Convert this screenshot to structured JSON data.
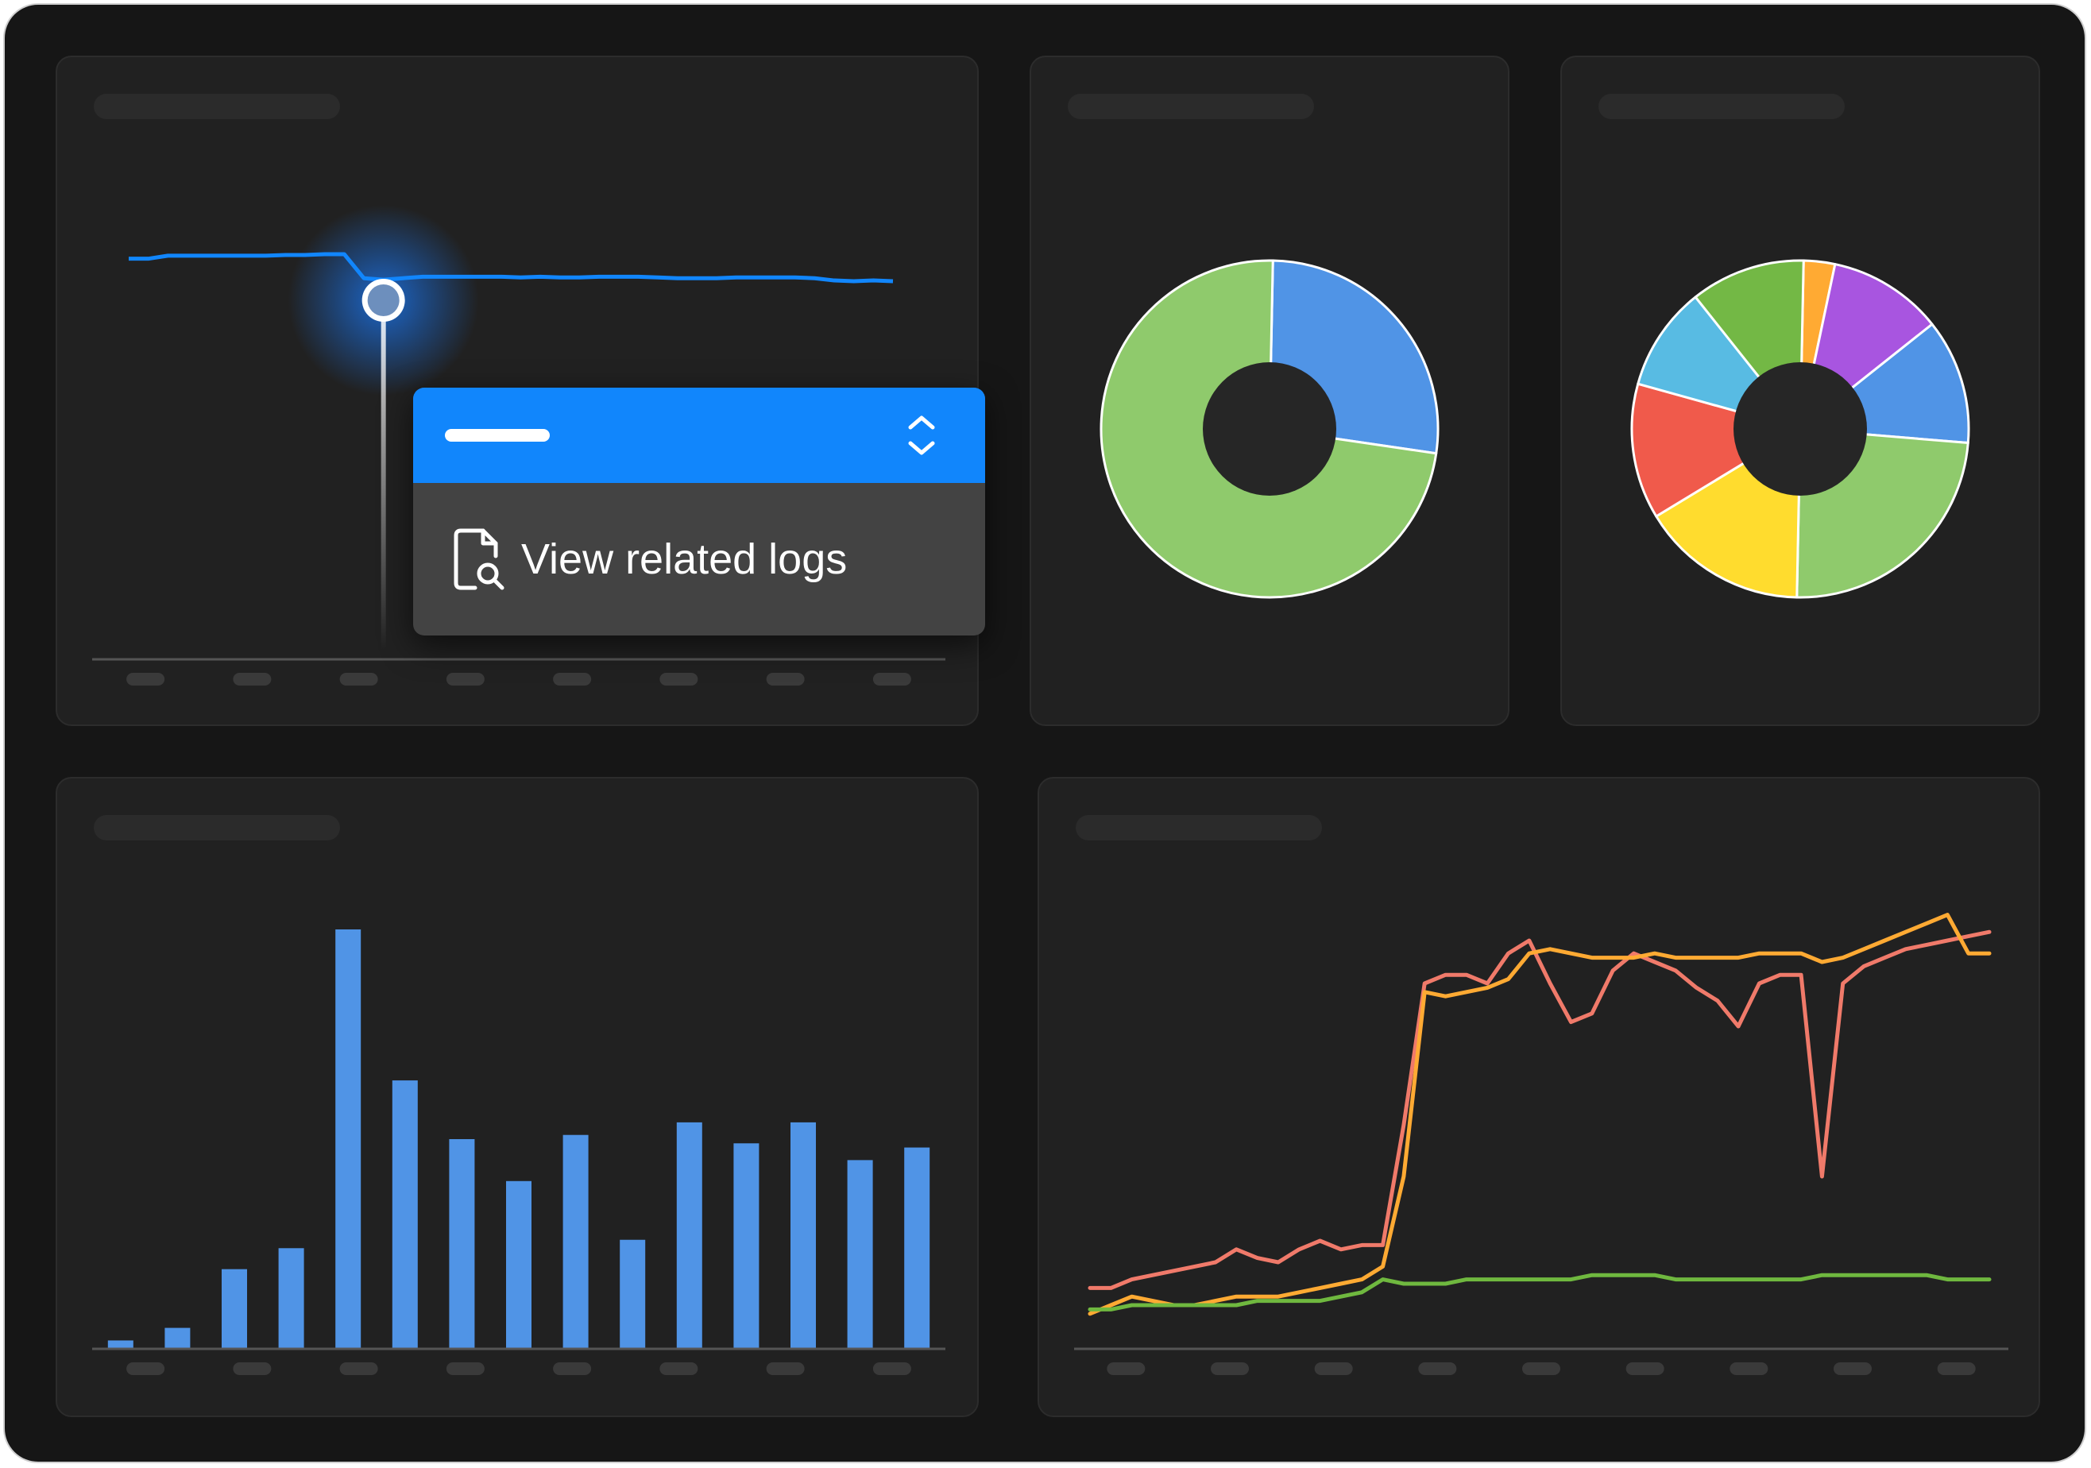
{
  "tooltip": {
    "menu_item_label": "View related logs",
    "icon": "file-search-icon"
  },
  "colors": {
    "background": "#161616",
    "panel": "#212121",
    "accent_blue": "#1186fc",
    "bar_blue": "#5094e6",
    "green": "#8fca6c",
    "red": "#f05a4b",
    "yellow": "#ffdc2e",
    "purple": "#a855e0",
    "orange": "#ffaa33",
    "cyan": "#58bbe3",
    "dark_green": "#73b845"
  },
  "chart_data": [
    {
      "type": "line",
      "series": [
        {
          "values": [
            86,
            86,
            90,
            90,
            90,
            90,
            90,
            90,
            91,
            91,
            92,
            92,
            60,
            58,
            60,
            62,
            62,
            62,
            62,
            62,
            61,
            62,
            61,
            61,
            62,
            62,
            62,
            61,
            60,
            60,
            60,
            61,
            61,
            61,
            61,
            60,
            57,
            56,
            57,
            56
          ],
          "color": "#1186fc"
        }
      ],
      "highlight_index": 13
    },
    {
      "type": "pie",
      "donut": true,
      "slices": [
        {
          "value": 27,
          "color": "#5094e6"
        },
        {
          "value": 73,
          "color": "#8fca6c"
        }
      ]
    },
    {
      "type": "pie",
      "donut": true,
      "slices": [
        {
          "value": 3,
          "color": "#ffaa33"
        },
        {
          "value": 11,
          "color": "#a855e0"
        },
        {
          "value": 12,
          "color": "#5094e6"
        },
        {
          "value": 24,
          "color": "#8fca6c"
        },
        {
          "value": 16,
          "color": "#ffdc2e"
        },
        {
          "value": 13,
          "color": "#f05a4b"
        },
        {
          "value": 10,
          "color": "#58bbe3"
        },
        {
          "value": 11,
          "color": "#73b845"
        }
      ]
    },
    {
      "type": "bar",
      "values": [
        2,
        5,
        19,
        24,
        100,
        64,
        50,
        40,
        51,
        26,
        54,
        49,
        54,
        45,
        48
      ],
      "color": "#5094e6",
      "ylim": [
        0,
        100
      ]
    },
    {
      "type": "line",
      "ylim": [
        0,
        100
      ],
      "series": [
        {
          "color": "#f07a6a",
          "values": [
            9,
            9,
            11,
            12,
            13,
            14,
            15,
            18,
            16,
            15,
            18,
            20,
            18,
            19,
            19,
            47,
            80,
            82,
            82,
            80,
            87,
            90,
            80,
            71,
            73,
            83,
            87,
            85,
            83,
            79,
            76,
            70,
            80,
            82,
            82,
            35,
            80,
            84,
            86,
            88,
            89,
            90,
            91,
            92
          ]
        },
        {
          "color": "#ffaa33",
          "values": [
            3,
            5,
            7,
            6,
            5,
            5,
            6,
            7,
            7,
            7,
            8,
            9,
            10,
            11,
            14,
            35,
            78,
            77,
            78,
            79,
            81,
            87,
            88,
            87,
            86,
            86,
            86,
            87,
            86,
            86,
            86,
            86,
            87,
            87,
            87,
            85,
            86,
            88,
            90,
            92,
            94,
            96,
            87,
            87
          ]
        },
        {
          "color": "#6fb83f",
          "values": [
            4,
            4,
            5,
            5,
            5,
            5,
            5,
            5,
            6,
            6,
            6,
            6,
            7,
            8,
            11,
            10,
            10,
            10,
            11,
            11,
            11,
            11,
            11,
            11,
            12,
            12,
            12,
            12,
            11,
            11,
            11,
            11,
            11,
            11,
            11,
            12,
            12,
            12,
            12,
            12,
            12,
            11,
            11,
            11
          ]
        }
      ]
    }
  ]
}
